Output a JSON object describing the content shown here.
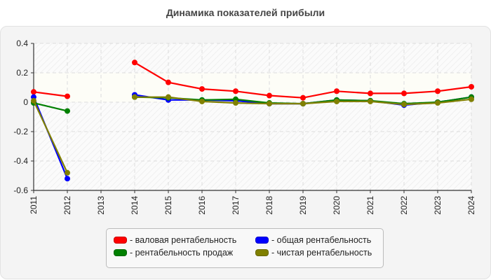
{
  "title": "Динамика показателей прибыли",
  "chart_data": {
    "type": "line",
    "title": "Динамика показателей прибыли",
    "xlabel": "",
    "ylabel": "",
    "x": [
      2011,
      2012,
      2013,
      2014,
      2015,
      2016,
      2017,
      2018,
      2019,
      2020,
      2021,
      2022,
      2023,
      2024
    ],
    "ylim": [
      -0.6,
      0.4
    ],
    "yticks": [
      0.4,
      0.2,
      0,
      -0.2,
      -0.4,
      -0.6
    ],
    "ytick_labels": [
      "0.4",
      "0.2",
      "0",
      "-0.2",
      "-0.4",
      "-0.6"
    ],
    "grid": true,
    "legend_position": "bottom",
    "series": [
      {
        "name": "валовая рентабельность",
        "color": "#ff0000",
        "values": [
          0.07,
          0.04,
          null,
          0.27,
          0.135,
          0.09,
          0.075,
          0.045,
          0.03,
          0.075,
          0.06,
          0.06,
          0.075,
          0.105
        ]
      },
      {
        "name": "общая рентабельность",
        "color": "#0000ff",
        "values": [
          0.035,
          -0.52,
          null,
          0.05,
          0.015,
          0.015,
          0.01,
          -0.01,
          -0.01,
          0.015,
          0.01,
          -0.02,
          0.0,
          0.035
        ]
      },
      {
        "name": "рентабельность продаж",
        "color": "#008000",
        "values": [
          -0.005,
          -0.06,
          null,
          0.035,
          0.03,
          0.015,
          0.02,
          -0.005,
          -0.01,
          0.015,
          0.01,
          -0.01,
          0.0,
          0.035
        ]
      },
      {
        "name": "чистая рентабельность",
        "color": "#808000",
        "values": [
          0.01,
          -0.48,
          null,
          0.035,
          0.035,
          0.005,
          -0.005,
          -0.01,
          -0.01,
          0.005,
          0.005,
          -0.015,
          -0.005,
          0.02
        ]
      }
    ]
  },
  "legend": [
    {
      "label": "- валовая рентабельность",
      "color": "#ff0000"
    },
    {
      "label": "- общая рентабельность",
      "color": "#0000ff"
    },
    {
      "label": "- рентабельность продаж",
      "color": "#008000"
    },
    {
      "label": "- чистая рентабельность",
      "color": "#808000"
    }
  ]
}
